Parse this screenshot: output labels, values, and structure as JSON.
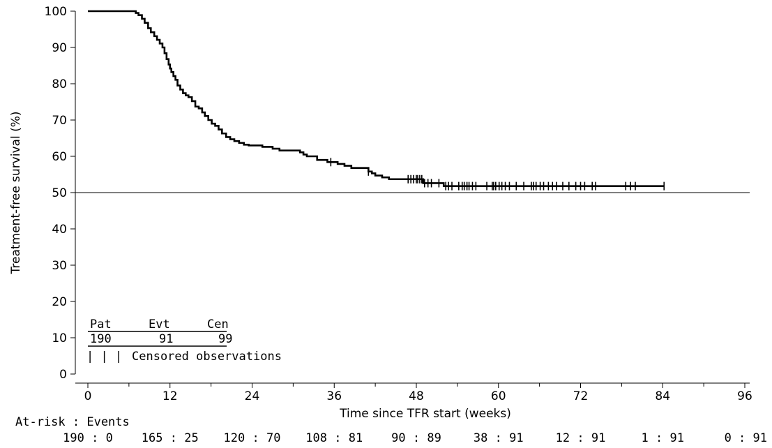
{
  "chart_data": {
    "type": "line",
    "title": "",
    "xlabel": "Time since TFR start (weeks)",
    "ylabel": "Treatment-free survival (%)",
    "xlim": [
      0,
      96
    ],
    "ylim": [
      0,
      100
    ],
    "x_ticks": [
      "0",
      "12",
      "24",
      "36",
      "48",
      "60",
      "72",
      "84",
      "96"
    ],
    "y_ticks": [
      "0",
      "10",
      "20",
      "30",
      "40",
      "50",
      "60",
      "70",
      "80",
      "90",
      "100"
    ],
    "reference_line_y": 50,
    "series": [
      {
        "step": true,
        "x": [
          0,
          7.0,
          7.4,
          7.9,
          8.3,
          8.8,
          9.2,
          9.7,
          10.1,
          10.5,
          10.9,
          11.2,
          11.5,
          11.8,
          12.0,
          12.2,
          12.5,
          12.8,
          13.1,
          13.5,
          13.9,
          14.3,
          14.7,
          15.2,
          15.7,
          16.2,
          16.7,
          17.1,
          17.6,
          18.1,
          18.6,
          19.1,
          19.6,
          20.2,
          20.8,
          21.4,
          22.1,
          22.8,
          23.5,
          25.5,
          27.0,
          28.0,
          31.0,
          31.5,
          32.0,
          33.5,
          35.0,
          36.5,
          37.5,
          38.5,
          41.0,
          41.5,
          42.0,
          43.0,
          44.0,
          49.0,
          52.0,
          84.2
        ],
        "y": [
          100,
          99.5,
          98.9,
          97.9,
          96.8,
          95.3,
          94.2,
          93.1,
          92.1,
          91.1,
          90.0,
          88.4,
          86.8,
          85.3,
          84.2,
          83.2,
          82.1,
          81.1,
          79.5,
          78.4,
          77.4,
          76.8,
          76.3,
          75.2,
          73.7,
          73.2,
          72.1,
          71.1,
          70.0,
          69.0,
          68.4,
          67.4,
          66.3,
          65.3,
          64.7,
          64.2,
          63.7,
          63.2,
          63.0,
          62.6,
          62.1,
          61.6,
          61.1,
          60.5,
          60.0,
          59.0,
          58.4,
          57.9,
          57.4,
          56.8,
          55.8,
          55.3,
          54.7,
          54.2,
          53.7,
          52.6,
          51.8,
          51.8
        ],
        "censored_x": [
          35.5,
          41.0,
          46.8,
          47.2,
          47.6,
          48.0,
          48.2,
          48.5,
          48.8,
          49.2,
          49.7,
          50.2,
          51.3,
          52.3,
          52.7,
          53.2,
          54.2,
          54.7,
          55.0,
          55.4,
          55.7,
          56.2,
          56.7,
          58.3,
          59.1,
          59.3,
          59.6,
          60.1,
          60.5,
          61.0,
          61.6,
          62.6,
          63.7,
          64.8,
          65.1,
          65.5,
          66.1,
          66.6,
          67.3,
          67.9,
          68.5,
          69.4,
          70.3,
          71.3,
          72.0,
          72.6,
          73.7,
          74.2,
          78.6,
          79.3,
          80.0,
          84.2
        ]
      }
    ],
    "inset_table": {
      "headers": [
        "Pat",
        "Evt",
        "Cen"
      ],
      "values": [
        "190",
        "91",
        "99"
      ],
      "censor_symbol": "| | |",
      "censor_label": "Censored observations"
    },
    "at_risk_label": "At-risk : Events",
    "at_risk": [
      "190 : 0",
      "165 : 25",
      "120 : 70",
      "108 : 81",
      "90 : 89",
      "38 : 91",
      "12 : 91",
      "1 : 91",
      "0 : 91"
    ],
    "grid": false,
    "colors": {
      "line": "#000000",
      "axis": "#000000",
      "background": "#ffffff"
    }
  }
}
